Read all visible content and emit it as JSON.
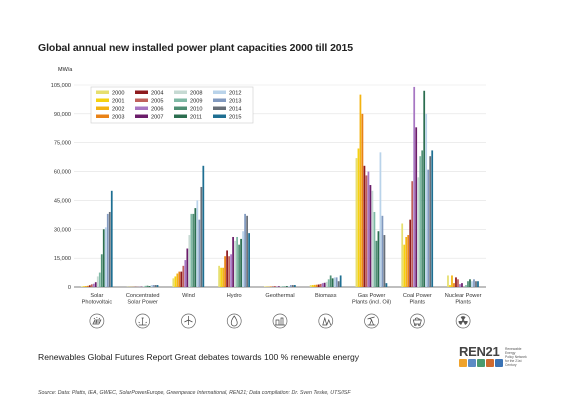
{
  "chart_data": {
    "type": "bar",
    "title": "Global annual new installed power plant capacities 2000 till 2015",
    "ylabel": "MW/a",
    "ylim": [
      0,
      105000
    ],
    "yticks": [
      "0",
      "15,000",
      "30,000",
      "45,000",
      "60,000",
      "75,000",
      "90,000",
      "105,000"
    ],
    "grid": true,
    "legend_position": "top-left",
    "categories": [
      "Solar Photovoltaic",
      "Concentrated Solar Power",
      "Wind",
      "Hydro",
      "Geothermal",
      "Biomass",
      "Gas Power Plants (incl. Oil)",
      "Coal Power Plants",
      "Nuclear Power Plants"
    ],
    "category_labels": [
      [
        "Solar",
        "Photovoltaic"
      ],
      [
        "Concentrated",
        "Solar Power"
      ],
      [
        "Wind"
      ],
      [
        "Hydro"
      ],
      [
        "Geothermal"
      ],
      [
        "Biomass"
      ],
      [
        "Gas Power",
        "Plants (incl. Oil)"
      ],
      [
        "Coal Power",
        "Plants"
      ],
      [
        "Nuclear Power",
        "Plants"
      ]
    ],
    "series": [
      {
        "name": "2000",
        "color": "#e6df6f",
        "values": [
          300,
          100,
          4500,
          11000,
          300,
          1000,
          67000,
          33000,
          6000
        ]
      },
      {
        "name": "2001",
        "color": "#f5d20f",
        "values": [
          400,
          100,
          5500,
          10000,
          200,
          1000,
          72000,
          22000,
          1000
        ]
      },
      {
        "name": "2002",
        "color": "#f3b311",
        "values": [
          500,
          100,
          7000,
          10000,
          200,
          1100,
          100000,
          26000,
          6000
        ]
      },
      {
        "name": "2003",
        "color": "#e98217",
        "values": [
          600,
          100,
          8000,
          16000,
          300,
          1200,
          90000,
          27000,
          2000
        ]
      },
      {
        "name": "2004",
        "color": "#8e1a1e",
        "values": [
          900,
          100,
          8000,
          19000,
          200,
          1300,
          63000,
          35000,
          5000
        ]
      },
      {
        "name": "2005",
        "color": "#c0615c",
        "values": [
          1400,
          100,
          11000,
          16000,
          500,
          1600,
          58000,
          55000,
          4000
        ]
      },
      {
        "name": "2006",
        "color": "#a776c3",
        "values": [
          1700,
          100,
          14000,
          17000,
          300,
          2000,
          60000,
          104000,
          1500
        ]
      },
      {
        "name": "2007",
        "color": "#6b1d6a",
        "values": [
          2500,
          200,
          20000,
          26000,
          400,
          2200,
          53000,
          83000,
          2000
        ]
      },
      {
        "name": "2008",
        "color": "#c6dad3",
        "values": [
          5500,
          400,
          27000,
          24000,
          500,
          2700,
          50000,
          57000,
          0
        ]
      },
      {
        "name": "2009",
        "color": "#7fb9a5",
        "values": [
          7500,
          600,
          38000,
          26000,
          400,
          4000,
          39000,
          68000,
          1000
        ]
      },
      {
        "name": "2010",
        "color": "#4f8f74",
        "values": [
          17000,
          700,
          38000,
          22000,
          300,
          6000,
          24000,
          71000,
          3000
        ]
      },
      {
        "name": "2011",
        "color": "#2b6e4f",
        "values": [
          30000,
          500,
          41000,
          25000,
          500,
          4500,
          29000,
          102000,
          4000
        ]
      },
      {
        "name": "2012",
        "color": "#b9d3ea",
        "values": [
          31000,
          1000,
          45000,
          29000,
          500,
          5000,
          70000,
          90000,
          3000
        ]
      },
      {
        "name": "2013",
        "color": "#8199bf",
        "values": [
          38000,
          1000,
          35000,
          38000,
          1000,
          5000,
          37000,
          61000,
          4000
        ]
      },
      {
        "name": "2014",
        "color": "#686f78",
        "values": [
          39000,
          1000,
          52000,
          37000,
          1000,
          3000,
          27000,
          68000,
          3000
        ]
      },
      {
        "name": "2015",
        "color": "#1e6f92",
        "values": [
          50000,
          1000,
          63000,
          28000,
          1000,
          6000,
          2000,
          71000,
          3000
        ]
      }
    ]
  },
  "category_icons": [
    "solar-panel-icon",
    "solar-tower-icon",
    "wind-turbine-icon",
    "water-drop-icon",
    "geothermal-plant-icon",
    "forest-icon",
    "oil-pump-icon",
    "coal-cart-icon",
    "radiation-icon"
  ],
  "subline": "Renewables Global Futures Report Great debates towards 100 % renewable energy",
  "source": "Source: Data: Platts, IEA, GWEC, SolarPowerEurope, Greenpeace International, REN21; Data compilation: Dr. Sven Teske, UTS/ISF",
  "logo": {
    "name": "REN21",
    "tagline": [
      "Renewable Energy",
      "Policy Network",
      "for the 21st Century"
    ],
    "icon_colors": [
      "#f0a32c",
      "#5c8bc5",
      "#4a9a6f",
      "#d06a2e",
      "#3a73b5"
    ]
  }
}
